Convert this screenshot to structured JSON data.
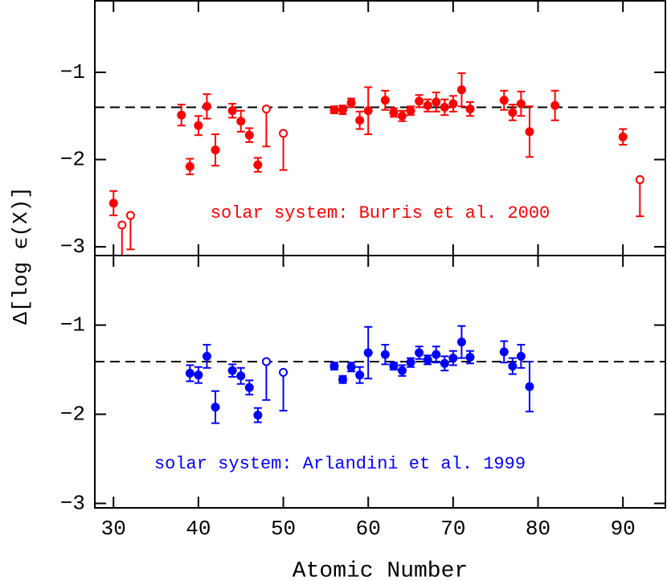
{
  "chart_data": [
    {
      "type": "errorbar",
      "annotation": "solar system: Burris et al. 2000",
      "color": "#ff0000",
      "xlim": [
        27.8,
        95
      ],
      "ylim": [
        -3.1,
        -0.18
      ],
      "yticks": [
        {
          "value": -1,
          "label": "−1"
        },
        {
          "value": -2,
          "label": "−2"
        },
        {
          "value": -3,
          "label": "−3"
        }
      ],
      "hline": -1.4,
      "series": [
        {
          "marker": "filled",
          "x": [
            30,
            38,
            39,
            40,
            41,
            42,
            44,
            45,
            46,
            47,
            56,
            57,
            58,
            59,
            60,
            62,
            63,
            64,
            65,
            66,
            67,
            68,
            69,
            70,
            71,
            72,
            76,
            77,
            78,
            79,
            82,
            90
          ],
          "values": [
            -2.5,
            -1.49,
            -2.08,
            -1.61,
            -1.39,
            -1.89,
            -1.44,
            -1.56,
            -1.72,
            -2.06,
            -1.43,
            -1.43,
            -1.35,
            -1.55,
            -1.44,
            -1.32,
            -1.46,
            -1.5,
            -1.44,
            -1.33,
            -1.38,
            -1.34,
            -1.4,
            -1.36,
            -1.2,
            -1.42,
            -1.32,
            -1.46,
            -1.36,
            -1.68,
            -1.38,
            -1.74
          ],
          "errors": [
            0.14,
            0.12,
            0.09,
            0.11,
            0.14,
            0.18,
            0.08,
            0.12,
            0.08,
            0.08,
            0.04,
            0.05,
            0.05,
            0.1,
            0.27,
            0.11,
            0.05,
            0.06,
            0.05,
            0.07,
            0.07,
            0.11,
            0.09,
            0.09,
            0.19,
            0.08,
            0.11,
            0.09,
            0.14,
            0.29,
            0.17,
            0.09
          ]
        },
        {
          "marker": "open",
          "x": [
            31,
            32,
            48,
            50,
            92
          ],
          "values": [
            -2.75,
            -2.64,
            -1.42,
            -1.7,
            -2.23
          ],
          "lower": [
            -3.2,
            -3.03,
            -1.85,
            -2.12,
            -2.65
          ]
        }
      ]
    },
    {
      "type": "errorbar",
      "annotation": "solar system: Arlandini et al. 1999",
      "color": "#0000ff",
      "xlim": [
        27.8,
        95
      ],
      "ylim": [
        -3.05,
        -0.22
      ],
      "xticks": [
        30,
        40,
        50,
        60,
        70,
        80,
        90
      ],
      "yticks": [
        {
          "value": -1,
          "label": "−1"
        },
        {
          "value": -2,
          "label": "−2"
        },
        {
          "value": -3,
          "label": "−3"
        }
      ],
      "hline": -1.41,
      "xlabel": "Atomic Number",
      "ylabel": "Δ[log ϵ(X)]",
      "series": [
        {
          "marker": "filled",
          "x": [
            39,
            40,
            41,
            42,
            44,
            45,
            46,
            47,
            56,
            57,
            58,
            59,
            60,
            62,
            63,
            64,
            65,
            66,
            67,
            68,
            69,
            70,
            71,
            72,
            76,
            77,
            78,
            79
          ],
          "values": [
            -1.54,
            -1.56,
            -1.35,
            -1.92,
            -1.51,
            -1.57,
            -1.7,
            -2.01,
            -1.46,
            -1.61,
            -1.47,
            -1.56,
            -1.31,
            -1.33,
            -1.46,
            -1.51,
            -1.42,
            -1.31,
            -1.39,
            -1.33,
            -1.43,
            -1.37,
            -1.19,
            -1.36,
            -1.3,
            -1.46,
            -1.35,
            -1.69
          ],
          "errors": [
            0.09,
            0.09,
            0.13,
            0.18,
            0.07,
            0.09,
            0.08,
            0.08,
            0.04,
            0.04,
            0.05,
            0.09,
            0.29,
            0.11,
            0.04,
            0.06,
            0.05,
            0.07,
            0.05,
            0.09,
            0.08,
            0.08,
            0.18,
            0.07,
            0.12,
            0.09,
            0.13,
            0.28
          ]
        },
        {
          "marker": "open",
          "x": [
            48,
            50
          ],
          "values": [
            -1.41,
            -1.53
          ],
          "lower": [
            -1.84,
            -1.96
          ]
        }
      ]
    }
  ]
}
